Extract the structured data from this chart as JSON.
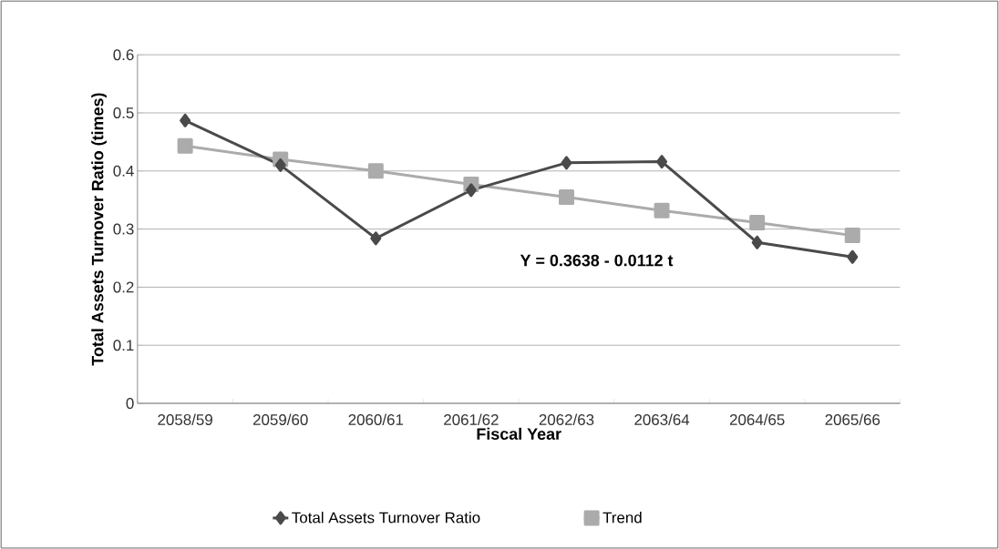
{
  "chart_data": {
    "type": "line",
    "xlabel": "Fiscal Year",
    "ylabel": "Total Assets Turnover Ratio (times)",
    "categories": [
      "2058/59",
      "2059/60",
      "2060/61",
      "2061/62",
      "2062/63",
      "2063/64",
      "2064/65",
      "2065/66"
    ],
    "series": [
      {
        "name": "Total Assets Turnover Ratio",
        "color": "#4a4a4a",
        "marker": "diamond",
        "values": [
          0.487,
          0.41,
          0.284,
          0.367,
          0.414,
          0.416,
          0.277,
          0.252
        ]
      },
      {
        "name": "Trend",
        "color": "#ababab",
        "marker": "square",
        "values": [
          0.443,
          0.42,
          0.4,
          0.377,
          0.355,
          0.332,
          0.311,
          0.289
        ]
      }
    ],
    "ylim": [
      0,
      0.6
    ],
    "yticks": [
      0,
      0.1,
      0.2,
      0.3,
      0.4,
      0.5,
      0.6
    ],
    "grid": "y",
    "legend": "bottom",
    "line_style": "solid",
    "annotations": [
      "Y = 0.3638 - 0.0112 t"
    ]
  }
}
